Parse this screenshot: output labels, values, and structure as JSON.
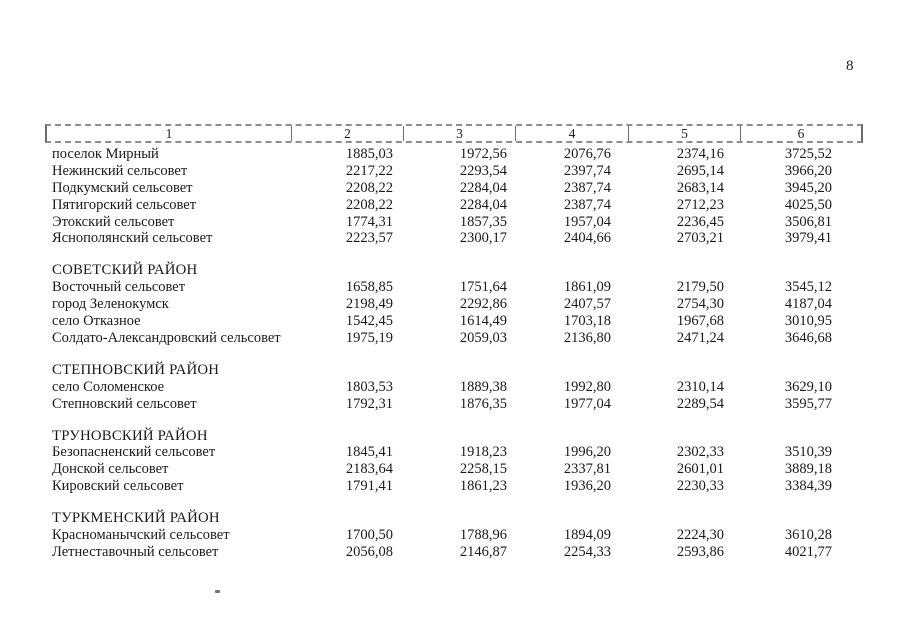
{
  "page": {
    "number": "8"
  },
  "table": {
    "headers": [
      "1",
      "2",
      "3",
      "4",
      "5",
      "6"
    ],
    "sections": [
      {
        "title": "",
        "rows": [
          {
            "name": "поселок Мирный",
            "values": [
              "1885,03",
              "1972,56",
              "2076,76",
              "2374,16",
              "3725,52"
            ]
          },
          {
            "name": "Нежинский сельсовет",
            "values": [
              "2217,22",
              "2293,54",
              "2397,74",
              "2695,14",
              "3966,20"
            ]
          },
          {
            "name": "Подкумский сельсовет",
            "values": [
              "2208,22",
              "2284,04",
              "2387,74",
              "2683,14",
              "3945,20"
            ]
          },
          {
            "name": "Пятигорский сельсовет",
            "values": [
              "2208,22",
              "2284,04",
              "2387,74",
              "2712,23",
              "4025,50"
            ]
          },
          {
            "name": "Этокский сельсовет",
            "values": [
              "1774,31",
              "1857,35",
              "1957,04",
              "2236,45",
              "3506,81"
            ]
          },
          {
            "name": "Яснополянский сельсовет",
            "values": [
              "2223,57",
              "2300,17",
              "2404,66",
              "2703,21",
              "3979,41"
            ]
          }
        ]
      },
      {
        "title": "СОВЕТСКИЙ РАЙОН",
        "rows": [
          {
            "name": "Восточный сельсовет",
            "values": [
              "1658,85",
              "1751,64",
              "1861,09",
              "2179,50",
              "3545,12"
            ]
          },
          {
            "name": "город Зеленокумск",
            "values": [
              "2198,49",
              "2292,86",
              "2407,57",
              "2754,30",
              "4187,04"
            ]
          },
          {
            "name": "село Отказное",
            "values": [
              "1542,45",
              "1614,49",
              "1703,18",
              "1967,68",
              "3010,95"
            ]
          },
          {
            "name": "Солдато-Александровский сельсовет",
            "values": [
              "1975,19",
              "2059,03",
              "2136,80",
              "2471,24",
              "3646,68"
            ]
          }
        ]
      },
      {
        "title": "СТЕПНОВСКИЙ РАЙОН",
        "rows": [
          {
            "name": "село Соломенское",
            "values": [
              "1803,53",
              "1889,38",
              "1992,80",
              "2310,14",
              "3629,10"
            ]
          },
          {
            "name": "Степновский сельсовет",
            "values": [
              "1792,31",
              "1876,35",
              "1977,04",
              "2289,54",
              "3595,77"
            ]
          }
        ]
      },
      {
        "title": "ТРУНОВСКИЙ РАЙОН",
        "rows": [
          {
            "name": "Безопасненский сельсовет",
            "values": [
              "1845,41",
              "1918,23",
              "1996,20",
              "2302,33",
              "3510,39"
            ]
          },
          {
            "name": "Донской сельсовет",
            "values": [
              "2183,64",
              "2258,15",
              "2337,81",
              "2601,01",
              "3889,18"
            ]
          },
          {
            "name": "Кировский сельсовет",
            "values": [
              "1791,41",
              "1861,23",
              "1936,20",
              "2230,33",
              "3384,39"
            ]
          }
        ]
      },
      {
        "title": "ТУРКМЕНСКИЙ РАЙОН",
        "rows": [
          {
            "name": "Красноманычский сельсовет",
            "values": [
              "1700,50",
              "1788,96",
              "1894,09",
              "2224,30",
              "3610,28"
            ]
          },
          {
            "name": "Летнеставочный сельсовет",
            "values": [
              "2056,08",
              "2146,87",
              "2254,33",
              "2593,86",
              "4021,77"
            ]
          }
        ]
      }
    ]
  }
}
